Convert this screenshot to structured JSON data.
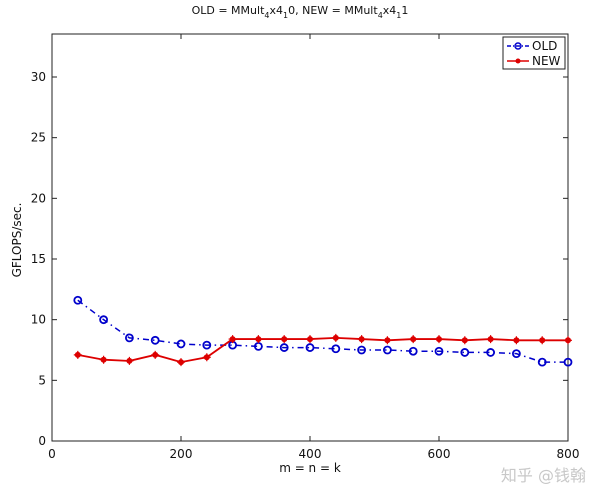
{
  "chart_data": {
    "type": "line",
    "title": "OLD = MMult_4x4_10, NEW = MMult_4x4_11",
    "title_parts": {
      "old_prefix": "OLD = MMult",
      "old_sub1": "4",
      "old_mid": "x4",
      "old_sub2": "1",
      "old_suffix": "0, NEW = MMult",
      "new_sub1": "4",
      "new_mid": "x4",
      "new_sub2": "1",
      "new_suffix": "1"
    },
    "xlabel": "m = n = k",
    "ylabel": "GFLOPS/sec.",
    "xlim": [
      0,
      800
    ],
    "ylim": [
      0,
      33.5
    ],
    "xticks": [
      0,
      200,
      400,
      600,
      800
    ],
    "yticks": [
      0,
      5,
      10,
      15,
      20,
      25,
      30
    ],
    "grid": false,
    "legend_position": "upper right",
    "x": [
      40,
      80,
      120,
      160,
      200,
      240,
      280,
      320,
      360,
      400,
      440,
      480,
      520,
      560,
      600,
      640,
      680,
      720,
      760,
      800
    ],
    "series": [
      {
        "name": "OLD",
        "color": "#0000cc",
        "style": "dash-dot, circle markers",
        "values": [
          11.6,
          10.0,
          8.5,
          8.3,
          8.0,
          7.9,
          7.9,
          7.8,
          7.7,
          7.7,
          7.6,
          7.5,
          7.5,
          7.4,
          7.4,
          7.3,
          7.3,
          7.2,
          6.5,
          6.5
        ]
      },
      {
        "name": "NEW",
        "color": "#dd0000",
        "style": "solid, star markers",
        "values": [
          7.1,
          6.7,
          6.6,
          7.1,
          6.5,
          6.9,
          8.4,
          8.4,
          8.4,
          8.4,
          8.5,
          8.4,
          8.3,
          8.4,
          8.4,
          8.3,
          8.4,
          8.3,
          8.3,
          8.3
        ]
      }
    ]
  },
  "watermark": "知乎 @钱翰"
}
